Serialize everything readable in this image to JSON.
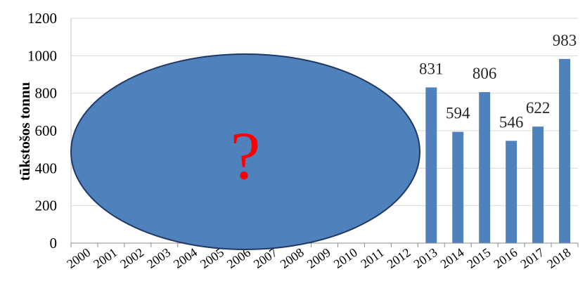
{
  "chart_data": {
    "type": "bar",
    "ylabel": "tūkstošos tonnu",
    "ylim": [
      0,
      1200
    ],
    "yticks": [
      0,
      200,
      400,
      600,
      800,
      1000,
      1200
    ],
    "grid": true,
    "categories": [
      "2000",
      "2001",
      "2002",
      "2003",
      "2004",
      "2005",
      "2006",
      "2007",
      "2008",
      "2009",
      "2010",
      "2011",
      "2012",
      "2013",
      "2014",
      "2015",
      "2016",
      "2017",
      "2018"
    ],
    "values": [
      null,
      null,
      null,
      null,
      null,
      null,
      null,
      null,
      null,
      null,
      null,
      null,
      null,
      831,
      594,
      806,
      546,
      622,
      983
    ],
    "data_labels": [
      "",
      "",
      "",
      "",
      "",
      "",
      "",
      "",
      "",
      "",
      "",
      "",
      "",
      "831",
      "594",
      "806",
      "546",
      "622",
      "983"
    ],
    "bar_color": "#4f81bd",
    "overlay": {
      "shape": "ellipse",
      "text": "?",
      "fill": "#4f81bd",
      "stroke": "#1f3864",
      "text_color": "#ff0000"
    }
  }
}
